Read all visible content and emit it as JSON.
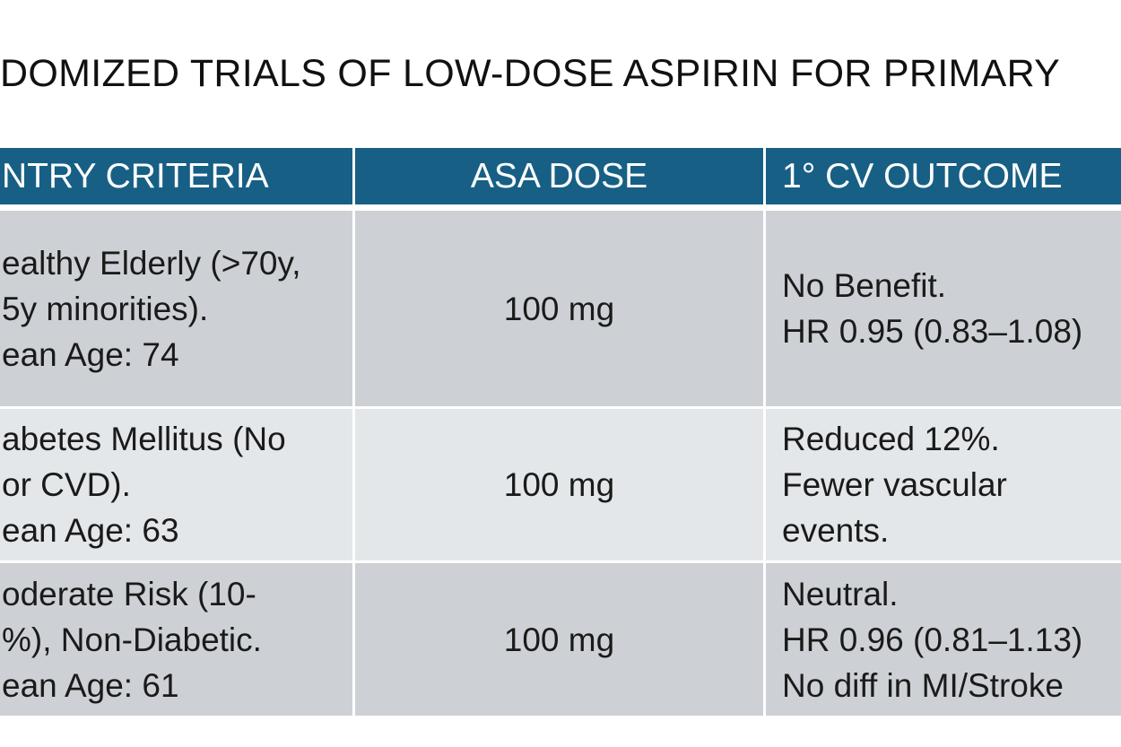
{
  "title": "DOMIZED TRIALS OF LOW-DOSE ASPIRIN FOR PRIMARY",
  "table": {
    "header": [
      "NTRY CRITERIA",
      "ASA DOSE",
      "1° CV OUTCOME"
    ],
    "rows": [
      [
        [
          "ealthy Elderly (>70y,",
          "5y minorities).",
          "ean Age: 74"
        ],
        [
          "100 mg"
        ],
        [
          "No Benefit.",
          "HR 0.95 (0.83–1.08)"
        ]
      ],
      [
        [
          "abetes Mellitus (No",
          "or CVD).",
          "ean Age: 63"
        ],
        [
          "100 mg"
        ],
        [
          "Reduced 12%.",
          "Fewer vascular",
          "events."
        ]
      ],
      [
        [
          "oderate Risk (10-",
          "%), Non-Diabetic.",
          "ean Age: 61"
        ],
        [
          "100 mg"
        ],
        [
          "Neutral.",
          "HR 0.96 (0.81–1.13)",
          "No diff in MI/Stroke"
        ]
      ]
    ]
  }
}
